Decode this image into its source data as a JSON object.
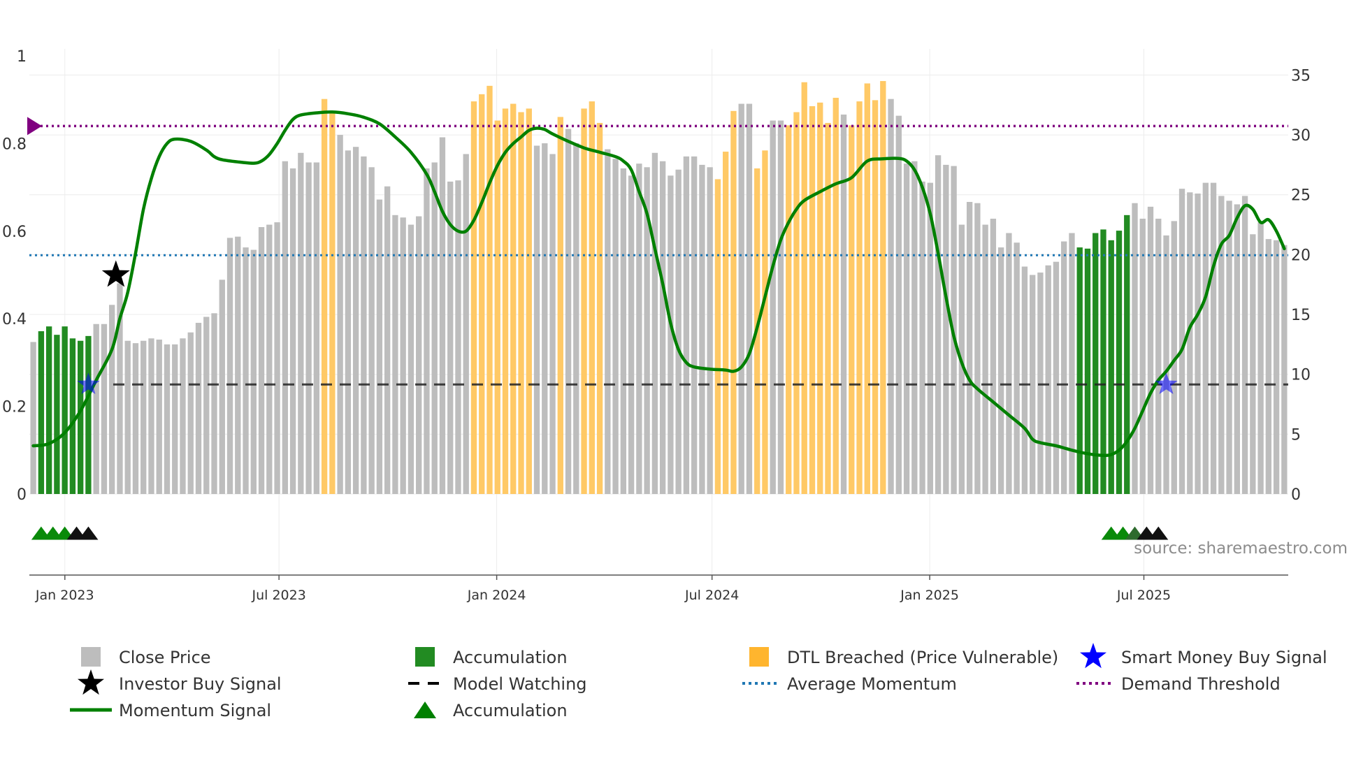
{
  "chart_data": {
    "type": "bar",
    "source": "source: sharemaestro.com",
    "colors": {
      "close": "#bdbdbd",
      "accumulation": "#228b22",
      "dtl": "#ffc966",
      "momentum": "#008000",
      "average_momentum": "#1f77b4",
      "model_watching": "#222222",
      "demand_threshold": "#800080",
      "smart_money": "#0000ff",
      "investor": "#000000"
    },
    "x_axis": {
      "start": "2022-12-02",
      "end": "2025-10-31",
      "ticks": [
        {
          "label": "Jan 2023",
          "date": "2023-01-01"
        },
        {
          "label": "Jul 2023",
          "date": "2023-07-01"
        },
        {
          "label": "Jan 2024",
          "date": "2024-01-01"
        },
        {
          "label": "Jul 2024",
          "date": "2024-07-01"
        },
        {
          "label": "Jan 2025",
          "date": "2025-01-01"
        },
        {
          "label": "Jul 2025",
          "date": "2025-07-01"
        }
      ]
    },
    "y_left": {
      "ylim": [
        0,
        1
      ],
      "ticks": [
        0,
        0.2,
        0.4,
        0.6,
        0.8,
        1
      ],
      "labels": [
        "0",
        "0.2",
        "0.4",
        "0.6",
        "0.8",
        "1"
      ]
    },
    "y_right": {
      "ylim": [
        0,
        36.6
      ],
      "ticks": [
        0,
        5,
        10,
        15,
        20,
        25,
        30,
        35
      ],
      "labels": [
        "0",
        "5",
        "10",
        "15",
        "20",
        "25",
        "30",
        "35"
      ]
    },
    "close_price": [
      12.7,
      13.6,
      14.0,
      13.3,
      14.0,
      13.0,
      12.8,
      13.2,
      14.2,
      14.2,
      15.8,
      17.6,
      12.8,
      12.6,
      12.8,
      13.0,
      12.9,
      12.5,
      12.5,
      13.0,
      13.5,
      14.3,
      14.8,
      15.1,
      17.9,
      21.4,
      21.5,
      20.6,
      20.4,
      22.3,
      22.5,
      22.7,
      27.8,
      27.2,
      28.5,
      27.7,
      27.7,
      33.0,
      32.0,
      30.0,
      28.7,
      29.0,
      28.2,
      27.3,
      24.6,
      25.7,
      23.3,
      23.1,
      22.5,
      23.2,
      27.2,
      27.7,
      29.8,
      26.1,
      26.2,
      28.4,
      32.8,
      33.4,
      34.1,
      31.2,
      32.2,
      32.6,
      31.9,
      32.2,
      29.1,
      29.3,
      28.4,
      31.5,
      30.5,
      29.3,
      32.2,
      32.8,
      31.0,
      28.8,
      28.0,
      27.2,
      26.6,
      27.6,
      27.3,
      28.5,
      27.8,
      26.6,
      27.1,
      28.2,
      28.2,
      27.5,
      27.3,
      26.3,
      28.6,
      32.0,
      32.6,
      32.6,
      27.2,
      28.7,
      31.2,
      31.2,
      30.8,
      31.9,
      34.4,
      32.4,
      32.7,
      31.0,
      33.1,
      31.7,
      30.8,
      32.8,
      34.3,
      32.9,
      34.5,
      33.0,
      31.6,
      27.6,
      27.8,
      26.1,
      26.0,
      28.3,
      27.5,
      27.4,
      22.5,
      24.4,
      24.3,
      22.5,
      23.0,
      20.6,
      21.8,
      21.0,
      19.0,
      18.3,
      18.5,
      19.1,
      19.4,
      21.1,
      21.8,
      20.6,
      20.5,
      21.8,
      22.1,
      21.2,
      22.0,
      23.3,
      24.3,
      23.0,
      24.0,
      23.0,
      21.6,
      22.8,
      25.5,
      25.2,
      25.1,
      26.0,
      26.0,
      24.9,
      24.5,
      24.2,
      24.9,
      21.7,
      22.7,
      21.3,
      21.2,
      20.8
    ],
    "accumulation_ranges": [
      [
        1,
        7
      ],
      [
        133,
        139
      ]
    ],
    "dtl_ranges": [
      [
        37,
        38
      ],
      [
        56,
        63
      ],
      [
        67,
        67
      ],
      [
        70,
        72
      ],
      [
        87,
        89
      ],
      [
        92,
        93
      ],
      [
        96,
        102
      ],
      [
        104,
        108
      ]
    ],
    "momentum": [
      {
        "x": 0,
        "y": 0.11
      },
      {
        "x": 2,
        "y": 0.115
      },
      {
        "x": 4,
        "y": 0.14
      },
      {
        "x": 6,
        "y": 0.19
      },
      {
        "x": 8,
        "y": 0.26
      },
      {
        "x": 10,
        "y": 0.33
      },
      {
        "x": 11,
        "y": 0.4
      },
      {
        "x": 12,
        "y": 0.46
      },
      {
        "x": 13,
        "y": 0.55
      },
      {
        "x": 14,
        "y": 0.65
      },
      {
        "x": 15,
        "y": 0.72
      },
      {
        "x": 16,
        "y": 0.77
      },
      {
        "x": 17,
        "y": 0.8
      },
      {
        "x": 18,
        "y": 0.81
      },
      {
        "x": 20,
        "y": 0.805
      },
      {
        "x": 22,
        "y": 0.785
      },
      {
        "x": 23,
        "y": 0.77
      },
      {
        "x": 24,
        "y": 0.763
      },
      {
        "x": 26,
        "y": 0.758
      },
      {
        "x": 28,
        "y": 0.755
      },
      {
        "x": 29,
        "y": 0.76
      },
      {
        "x": 30,
        "y": 0.775
      },
      {
        "x": 31,
        "y": 0.8
      },
      {
        "x": 32,
        "y": 0.83
      },
      {
        "x": 33,
        "y": 0.855
      },
      {
        "x": 34,
        "y": 0.865
      },
      {
        "x": 36,
        "y": 0.87
      },
      {
        "x": 38,
        "y": 0.872
      },
      {
        "x": 40,
        "y": 0.868
      },
      {
        "x": 42,
        "y": 0.86
      },
      {
        "x": 44,
        "y": 0.845
      },
      {
        "x": 46,
        "y": 0.815
      },
      {
        "x": 48,
        "y": 0.78
      },
      {
        "x": 50,
        "y": 0.73
      },
      {
        "x": 51,
        "y": 0.69
      },
      {
        "x": 52,
        "y": 0.645
      },
      {
        "x": 53,
        "y": 0.615
      },
      {
        "x": 54,
        "y": 0.6
      },
      {
        "x": 55,
        "y": 0.6
      },
      {
        "x": 56,
        "y": 0.625
      },
      {
        "x": 57,
        "y": 0.665
      },
      {
        "x": 58,
        "y": 0.71
      },
      {
        "x": 59,
        "y": 0.75
      },
      {
        "x": 60,
        "y": 0.78
      },
      {
        "x": 61,
        "y": 0.8
      },
      {
        "x": 62,
        "y": 0.815
      },
      {
        "x": 63,
        "y": 0.83
      },
      {
        "x": 64,
        "y": 0.835
      },
      {
        "x": 65,
        "y": 0.832
      },
      {
        "x": 66,
        "y": 0.822
      },
      {
        "x": 68,
        "y": 0.805
      },
      {
        "x": 70,
        "y": 0.79
      },
      {
        "x": 72,
        "y": 0.78
      },
      {
        "x": 74,
        "y": 0.77
      },
      {
        "x": 75,
        "y": 0.76
      },
      {
        "x": 76,
        "y": 0.74
      },
      {
        "x": 77,
        "y": 0.69
      },
      {
        "x": 78,
        "y": 0.64
      },
      {
        "x": 79,
        "y": 0.56
      },
      {
        "x": 80,
        "y": 0.48
      },
      {
        "x": 81,
        "y": 0.39
      },
      {
        "x": 82,
        "y": 0.33
      },
      {
        "x": 83,
        "y": 0.3
      },
      {
        "x": 84,
        "y": 0.29
      },
      {
        "x": 86,
        "y": 0.285
      },
      {
        "x": 88,
        "y": 0.283
      },
      {
        "x": 89,
        "y": 0.28
      },
      {
        "x": 90,
        "y": 0.29
      },
      {
        "x": 91,
        "y": 0.32
      },
      {
        "x": 92,
        "y": 0.38
      },
      {
        "x": 93,
        "y": 0.45
      },
      {
        "x": 94,
        "y": 0.52
      },
      {
        "x": 95,
        "y": 0.58
      },
      {
        "x": 96,
        "y": 0.62
      },
      {
        "x": 97,
        "y": 0.65
      },
      {
        "x": 98,
        "y": 0.67
      },
      {
        "x": 100,
        "y": 0.69
      },
      {
        "x": 102,
        "y": 0.708
      },
      {
        "x": 104,
        "y": 0.722
      },
      {
        "x": 106,
        "y": 0.76
      },
      {
        "x": 108,
        "y": 0.765
      },
      {
        "x": 110,
        "y": 0.766
      },
      {
        "x": 111,
        "y": 0.76
      },
      {
        "x": 112,
        "y": 0.74
      },
      {
        "x": 113,
        "y": 0.7
      },
      {
        "x": 114,
        "y": 0.64
      },
      {
        "x": 115,
        "y": 0.55
      },
      {
        "x": 116,
        "y": 0.45
      },
      {
        "x": 117,
        "y": 0.36
      },
      {
        "x": 118,
        "y": 0.3
      },
      {
        "x": 119,
        "y": 0.26
      },
      {
        "x": 120,
        "y": 0.24
      },
      {
        "x": 122,
        "y": 0.21
      },
      {
        "x": 124,
        "y": 0.18
      },
      {
        "x": 126,
        "y": 0.15
      },
      {
        "x": 127,
        "y": 0.125
      },
      {
        "x": 128,
        "y": 0.117
      },
      {
        "x": 130,
        "y": 0.11
      },
      {
        "x": 132,
        "y": 0.1
      },
      {
        "x": 134,
        "y": 0.092
      },
      {
        "x": 136,
        "y": 0.088
      },
      {
        "x": 137,
        "y": 0.09
      },
      {
        "x": 138,
        "y": 0.1
      },
      {
        "x": 139,
        "y": 0.12
      },
      {
        "x": 140,
        "y": 0.15
      },
      {
        "x": 141,
        "y": 0.19
      },
      {
        "x": 142,
        "y": 0.23
      },
      {
        "x": 143,
        "y": 0.26
      },
      {
        "x": 144,
        "y": 0.28
      },
      {
        "x": 145,
        "y": 0.305
      },
      {
        "x": 146,
        "y": 0.33
      },
      {
        "x": 147,
        "y": 0.38
      },
      {
        "x": 148,
        "y": 0.41
      },
      {
        "x": 149,
        "y": 0.45
      },
      {
        "x": 150,
        "y": 0.52
      },
      {
        "x": 151,
        "y": 0.57
      },
      {
        "x": 152,
        "y": 0.59
      },
      {
        "x": 153,
        "y": 0.63
      },
      {
        "x": 154,
        "y": 0.658
      },
      {
        "x": 155,
        "y": 0.65
      },
      {
        "x": 156,
        "y": 0.62
      },
      {
        "x": 157,
        "y": 0.626
      },
      {
        "x": 158,
        "y": 0.6
      },
      {
        "x": 159,
        "y": 0.56
      }
    ],
    "average_momentum_level": 0.545,
    "model_watching_level": 0.25,
    "demand_threshold_level": 0.84,
    "investor_buy_signals": [
      {
        "x": 10.5,
        "y": 0.5
      }
    ],
    "smart_money_buy_signals": [
      {
        "x": 7,
        "y": 0.25
      },
      {
        "x": 144,
        "y": 0.25
      }
    ],
    "accumulation_triangles": [
      {
        "x": 1,
        "color": "green"
      },
      {
        "x": 2.5,
        "color": "green"
      },
      {
        "x": 4,
        "color": "green"
      },
      {
        "x": 5.5,
        "color": "black"
      },
      {
        "x": 7,
        "color": "black"
      },
      {
        "x": 137,
        "color": "green"
      },
      {
        "x": 138.5,
        "color": "green"
      },
      {
        "x": 140,
        "color": "darkgreen"
      },
      {
        "x": 141.5,
        "color": "black"
      },
      {
        "x": 143,
        "color": "black"
      }
    ],
    "legend": [
      {
        "label": "Close Price",
        "symbol": "square",
        "color": "#bdbdbd"
      },
      {
        "label": "Accumulation",
        "symbol": "square",
        "color": "#228b22"
      },
      {
        "label": "DTL Breached (Price Vulnerable)",
        "symbol": "square",
        "color": "#ffb52e"
      },
      {
        "label": "Smart Money Buy Signal",
        "symbol": "star",
        "color": "#0000ff"
      },
      {
        "label": "Investor Buy Signal",
        "symbol": "star",
        "color": "#000000"
      },
      {
        "label": "Model Watching",
        "symbol": "dash",
        "color": "#000000"
      },
      {
        "label": "Average Momentum",
        "symbol": "dot",
        "color": "#1f77b4"
      },
      {
        "label": "Demand Threshold",
        "symbol": "dot",
        "color": "#800080"
      },
      {
        "label": "Momentum Signal",
        "symbol": "line",
        "color": "#008000"
      },
      {
        "label": "Accumulation",
        "symbol": "triangle",
        "color": "#008000"
      }
    ]
  }
}
